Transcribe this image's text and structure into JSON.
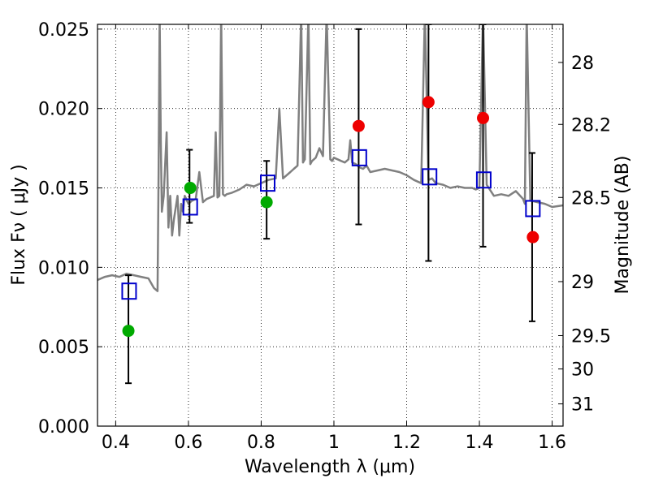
{
  "chart_data": {
    "type": "scatter",
    "xlabel": "Wavelength  λ (μm)",
    "ylabel": "Flux  Fν  ( μJy )",
    "y2label": "Magnitude (AB)",
    "xlim": [
      0.35,
      1.63
    ],
    "ylim": [
      0.0,
      0.0253
    ],
    "grid": true,
    "x_ticks": [
      0.4,
      0.6,
      0.8,
      1.0,
      1.2,
      1.4,
      1.6
    ],
    "x_tick_labels": [
      "0.4",
      "0.6",
      "0.8",
      "1",
      "1.2",
      "1.4",
      "1.6"
    ],
    "y_ticks": [
      0.0,
      0.005,
      0.01,
      0.015,
      0.02,
      0.025
    ],
    "y_tick_labels": [
      "0.000",
      "0.005",
      "0.010",
      "0.015",
      "0.020",
      "0.025"
    ],
    "y2_ticks": [
      {
        "label": "28",
        "flux": 0.0229
      },
      {
        "label": "28.2",
        "flux": 0.019
      },
      {
        "label": "28.5",
        "flux": 0.0144
      },
      {
        "label": "29",
        "flux": 0.0091
      },
      {
        "label": "29.5",
        "flux": 0.0057
      },
      {
        "label": "30",
        "flux": 0.0036
      },
      {
        "label": "31",
        "flux": 0.0014
      }
    ],
    "colors": {
      "spectrum": "#808080",
      "model": "#0000cc",
      "green": "#00aa00",
      "red": "#ee0000",
      "error": "#000000"
    },
    "series": [
      {
        "kind": "line",
        "color": "#808080",
        "x": [
          0.35,
          0.37,
          0.39,
          0.41,
          0.43,
          0.45,
          0.47,
          0.49,
          0.505,
          0.515,
          0.518,
          0.521,
          0.524,
          0.527,
          0.532,
          0.54,
          0.545,
          0.55,
          0.555,
          0.56,
          0.57,
          0.575,
          0.58,
          0.585,
          0.59,
          0.6,
          0.61,
          0.62,
          0.63,
          0.64,
          0.65,
          0.66,
          0.67,
          0.675,
          0.68,
          0.685,
          0.69,
          0.695,
          0.7,
          0.705,
          0.72,
          0.74,
          0.76,
          0.78,
          0.8,
          0.82,
          0.84,
          0.85,
          0.86,
          0.87,
          0.88,
          0.89,
          0.9,
          0.91,
          0.915,
          0.92,
          0.93,
          0.935,
          0.94,
          0.95,
          0.96,
          0.97,
          0.98,
          0.99,
          0.995,
          1.0,
          1.01,
          1.02,
          1.03,
          1.04,
          1.045,
          1.05,
          1.06,
          1.07,
          1.08,
          1.09,
          1.1,
          1.12,
          1.14,
          1.16,
          1.18,
          1.2,
          1.22,
          1.24,
          1.25,
          1.26,
          1.27,
          1.28,
          1.3,
          1.32,
          1.34,
          1.36,
          1.38,
          1.39,
          1.4,
          1.41,
          1.42,
          1.44,
          1.46,
          1.48,
          1.5,
          1.52,
          1.525,
          1.53,
          1.54,
          1.56,
          1.58,
          1.6,
          1.63
        ],
        "y": [
          0.0092,
          0.0094,
          0.0095,
          0.0094,
          0.0096,
          0.0095,
          0.0094,
          0.0093,
          0.0087,
          0.0085,
          0.016,
          0.026,
          0.018,
          0.0135,
          0.0145,
          0.0185,
          0.0125,
          0.0145,
          0.012,
          0.013,
          0.0145,
          0.012,
          0.014,
          0.0135,
          0.0145,
          0.014,
          0.0142,
          0.0143,
          0.016,
          0.0141,
          0.0143,
          0.0144,
          0.0145,
          0.0185,
          0.0144,
          0.0145,
          0.026,
          0.0146,
          0.0145,
          0.0146,
          0.0147,
          0.0149,
          0.0152,
          0.0151,
          0.0153,
          0.0155,
          0.0156,
          0.02,
          0.0156,
          0.0158,
          0.016,
          0.0162,
          0.0164,
          0.026,
          0.0166,
          0.0168,
          0.026,
          0.0165,
          0.0167,
          0.0169,
          0.0175,
          0.017,
          0.026,
          0.0168,
          0.0167,
          0.0169,
          0.0168,
          0.0167,
          0.0166,
          0.0168,
          0.018,
          0.0166,
          0.0165,
          0.0163,
          0.0162,
          0.0164,
          0.016,
          0.0161,
          0.0162,
          0.0161,
          0.016,
          0.0158,
          0.0155,
          0.0153,
          0.026,
          0.0155,
          0.0156,
          0.0153,
          0.0152,
          0.015,
          0.0151,
          0.015,
          0.015,
          0.0149,
          0.015,
          0.026,
          0.0152,
          0.0145,
          0.0146,
          0.0145,
          0.0148,
          0.0143,
          0.014,
          0.026,
          0.0142,
          0.0141,
          0.014,
          0.0138,
          0.0139
        ]
      },
      {
        "kind": "errorbars",
        "color": "#000000",
        "x": [
          0.435,
          0.603,
          0.815,
          1.068,
          1.26,
          1.41,
          1.545
        ],
        "y_low": [
          0.0027,
          0.0128,
          0.0118,
          0.0127,
          0.0104,
          0.0113,
          0.0066
        ],
        "y_high": [
          0.0095,
          0.0174,
          0.0167,
          0.025,
          0.0253,
          0.0253,
          0.0172
        ]
      },
      {
        "kind": "squares",
        "color": "#0000cc",
        "x": [
          0.437,
          0.605,
          0.818,
          1.07,
          1.263,
          1.412,
          1.547
        ],
        "y": [
          0.0085,
          0.0138,
          0.0153,
          0.0169,
          0.0157,
          0.0155,
          0.0137
        ]
      },
      {
        "kind": "circles",
        "color": "#00aa00",
        "x": [
          0.435,
          0.605,
          0.815
        ],
        "y": [
          0.006,
          0.015,
          0.0141
        ]
      },
      {
        "kind": "circles",
        "color": "#ee0000",
        "x": [
          1.068,
          1.26,
          1.41,
          1.547
        ],
        "y": [
          0.0189,
          0.0204,
          0.0194,
          0.0119
        ]
      }
    ]
  }
}
